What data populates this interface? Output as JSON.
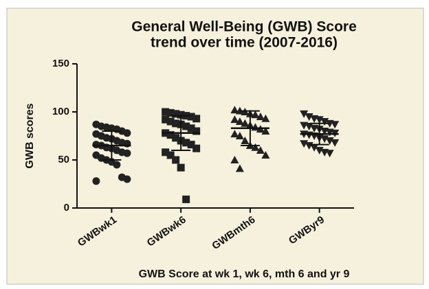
{
  "chart_data": {
    "type": "dotplot",
    "title": "General Well-Being (GWB) Score",
    "subtitle": "trend over time (2007-2016)",
    "ylabel": "GWB scores",
    "xlabel": "GWB Score at wk 1, wk 6, mth 6 and yr 9",
    "ylim": [
      0,
      150
    ],
    "yticks": [
      0,
      50,
      100,
      150
    ],
    "color": "#222222",
    "series": [
      {
        "name": "GWBwk1",
        "marker": "circle",
        "mean": 65,
        "sd": 15,
        "values": [
          87,
          85,
          84,
          83,
          82,
          80,
          78,
          77,
          75,
          73,
          72,
          70,
          68,
          67,
          66,
          65,
          63,
          62,
          60,
          58,
          57,
          55,
          52,
          50,
          48,
          45,
          32,
          30,
          28
        ]
      },
      {
        "name": "GWBwk6",
        "marker": "square",
        "mean": 78,
        "sd": 18,
        "values": [
          100,
          99,
          98,
          97,
          96,
          95,
          93,
          92,
          90,
          88,
          87,
          85,
          83,
          80,
          78,
          76,
          73,
          70,
          68,
          66,
          62,
          58,
          55,
          50,
          42,
          9
        ]
      },
      {
        "name": "GWBmth6",
        "marker": "triangle-up",
        "mean": 83,
        "sd": 18,
        "values": [
          102,
          101,
          100,
          98,
          97,
          95,
          93,
          92,
          90,
          88,
          86,
          84,
          82,
          80,
          77,
          75,
          70,
          65,
          63,
          60,
          55,
          50,
          41
        ]
      },
      {
        "name": "GWByr9",
        "marker": "triangle-down",
        "mean": 77,
        "sd": 11,
        "values": [
          98,
          95,
          93,
          92,
          90,
          88,
          87,
          86,
          85,
          83,
          82,
          80,
          79,
          78,
          77,
          76,
          75,
          73,
          72,
          70,
          68,
          67,
          65,
          63,
          60,
          58,
          57
        ]
      }
    ]
  }
}
